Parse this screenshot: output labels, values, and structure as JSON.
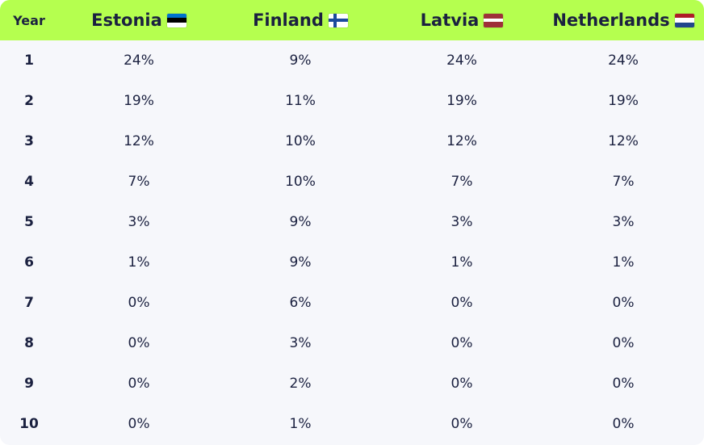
{
  "table": {
    "header": {
      "year": "Year",
      "countries": [
        {
          "name": "Estonia",
          "flag": "estonia-flag-icon",
          "colors": [
            "#0072ce",
            "#000000",
            "#ffffff"
          ]
        },
        {
          "name": "Finland",
          "flag": "finland-flag-icon",
          "colors": [
            "#ffffff",
            "#1b4a9c"
          ]
        },
        {
          "name": "Latvia",
          "flag": "latvia-flag-icon",
          "colors": [
            "#9e3039",
            "#ffffff",
            "#9e3039"
          ]
        },
        {
          "name": "Netherlands",
          "flag": "netherlands-flag-icon",
          "colors": [
            "#ae1c28",
            "#ffffff",
            "#21468b"
          ]
        }
      ]
    },
    "rows": [
      {
        "year": "1",
        "values": [
          "24%",
          "9%",
          "24%",
          "24%"
        ]
      },
      {
        "year": "2",
        "values": [
          "19%",
          "11%",
          "19%",
          "19%"
        ]
      },
      {
        "year": "3",
        "values": [
          "12%",
          "10%",
          "12%",
          "12%"
        ]
      },
      {
        "year": "4",
        "values": [
          "7%",
          "10%",
          "7%",
          "7%"
        ]
      },
      {
        "year": "5",
        "values": [
          "3%",
          "9%",
          "3%",
          "3%"
        ]
      },
      {
        "year": "6",
        "values": [
          "1%",
          "9%",
          "1%",
          "1%"
        ]
      },
      {
        "year": "7",
        "values": [
          "0%",
          "6%",
          "0%",
          "0%"
        ]
      },
      {
        "year": "8",
        "values": [
          "0%",
          "3%",
          "0%",
          "0%"
        ]
      },
      {
        "year": "9",
        "values": [
          "0%",
          "2%",
          "0%",
          "0%"
        ]
      },
      {
        "year": "10",
        "values": [
          "0%",
          "1%",
          "0%",
          "0%"
        ]
      }
    ]
  },
  "theme": {
    "header_bg": "#b5ff4f",
    "body_bg": "#f6f7fb",
    "text": "#1b2140"
  }
}
